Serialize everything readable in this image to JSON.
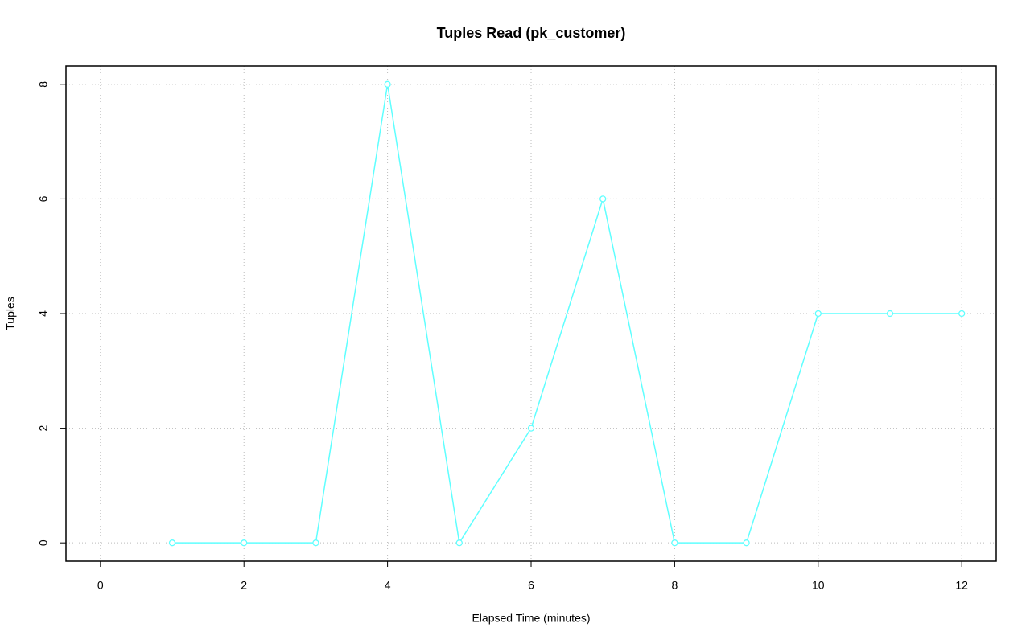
{
  "chart_data": {
    "type": "line",
    "title": "Tuples Read (pk_customer)",
    "x_label": "Elapsed Time (minutes)",
    "y_label": "Tuples",
    "x": [
      1,
      2,
      3,
      4,
      5,
      6,
      7,
      8,
      9,
      10,
      11,
      12
    ],
    "values": [
      0,
      0,
      0,
      8,
      0,
      2,
      6,
      0,
      0,
      4,
      4,
      4
    ],
    "color": "#5fffff",
    "xlim": [
      -0.48,
      12.48
    ],
    "xticks": [
      0,
      2,
      4,
      6,
      8,
      10,
      12
    ],
    "ylim": [
      -0.32,
      8.32
    ],
    "yticks": [
      0,
      2,
      4,
      6,
      8
    ],
    "grid": true
  }
}
